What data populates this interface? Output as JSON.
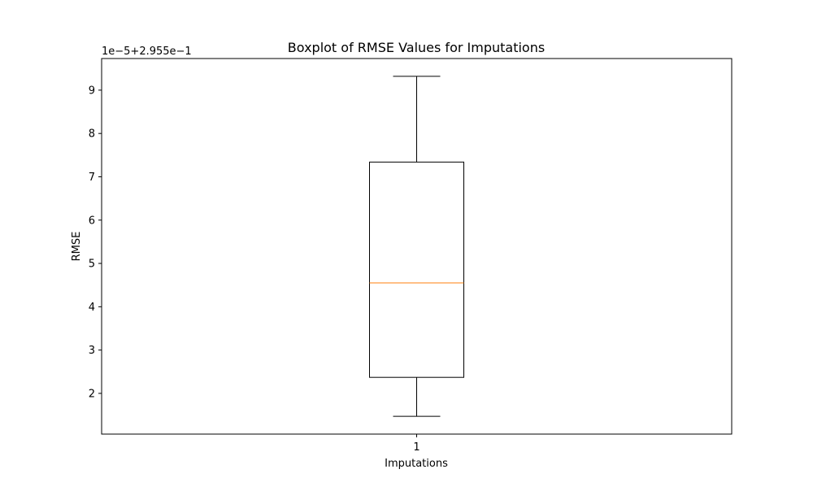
{
  "chart_data": {
    "type": "box",
    "title": "Boxplot of RMSE Values for Imputations",
    "xlabel": "Imputations",
    "ylabel": "RMSE",
    "offset_label": "1e−5+2.955e−1",
    "categories": [
      "1"
    ],
    "y_ticks": [
      2,
      3,
      4,
      5,
      6,
      7,
      8,
      9
    ],
    "y_tick_labels": [
      "2",
      "3",
      "4",
      "5",
      "6",
      "7",
      "8",
      "9"
    ],
    "ylim": [
      1.06,
      9.73
    ],
    "box": {
      "whisker_low": 1.47,
      "q1": 2.37,
      "median": 4.55,
      "q3": 7.34,
      "whisker_high": 9.32
    },
    "colors": {
      "median": "#ff7f0e",
      "box": "#000000"
    }
  }
}
